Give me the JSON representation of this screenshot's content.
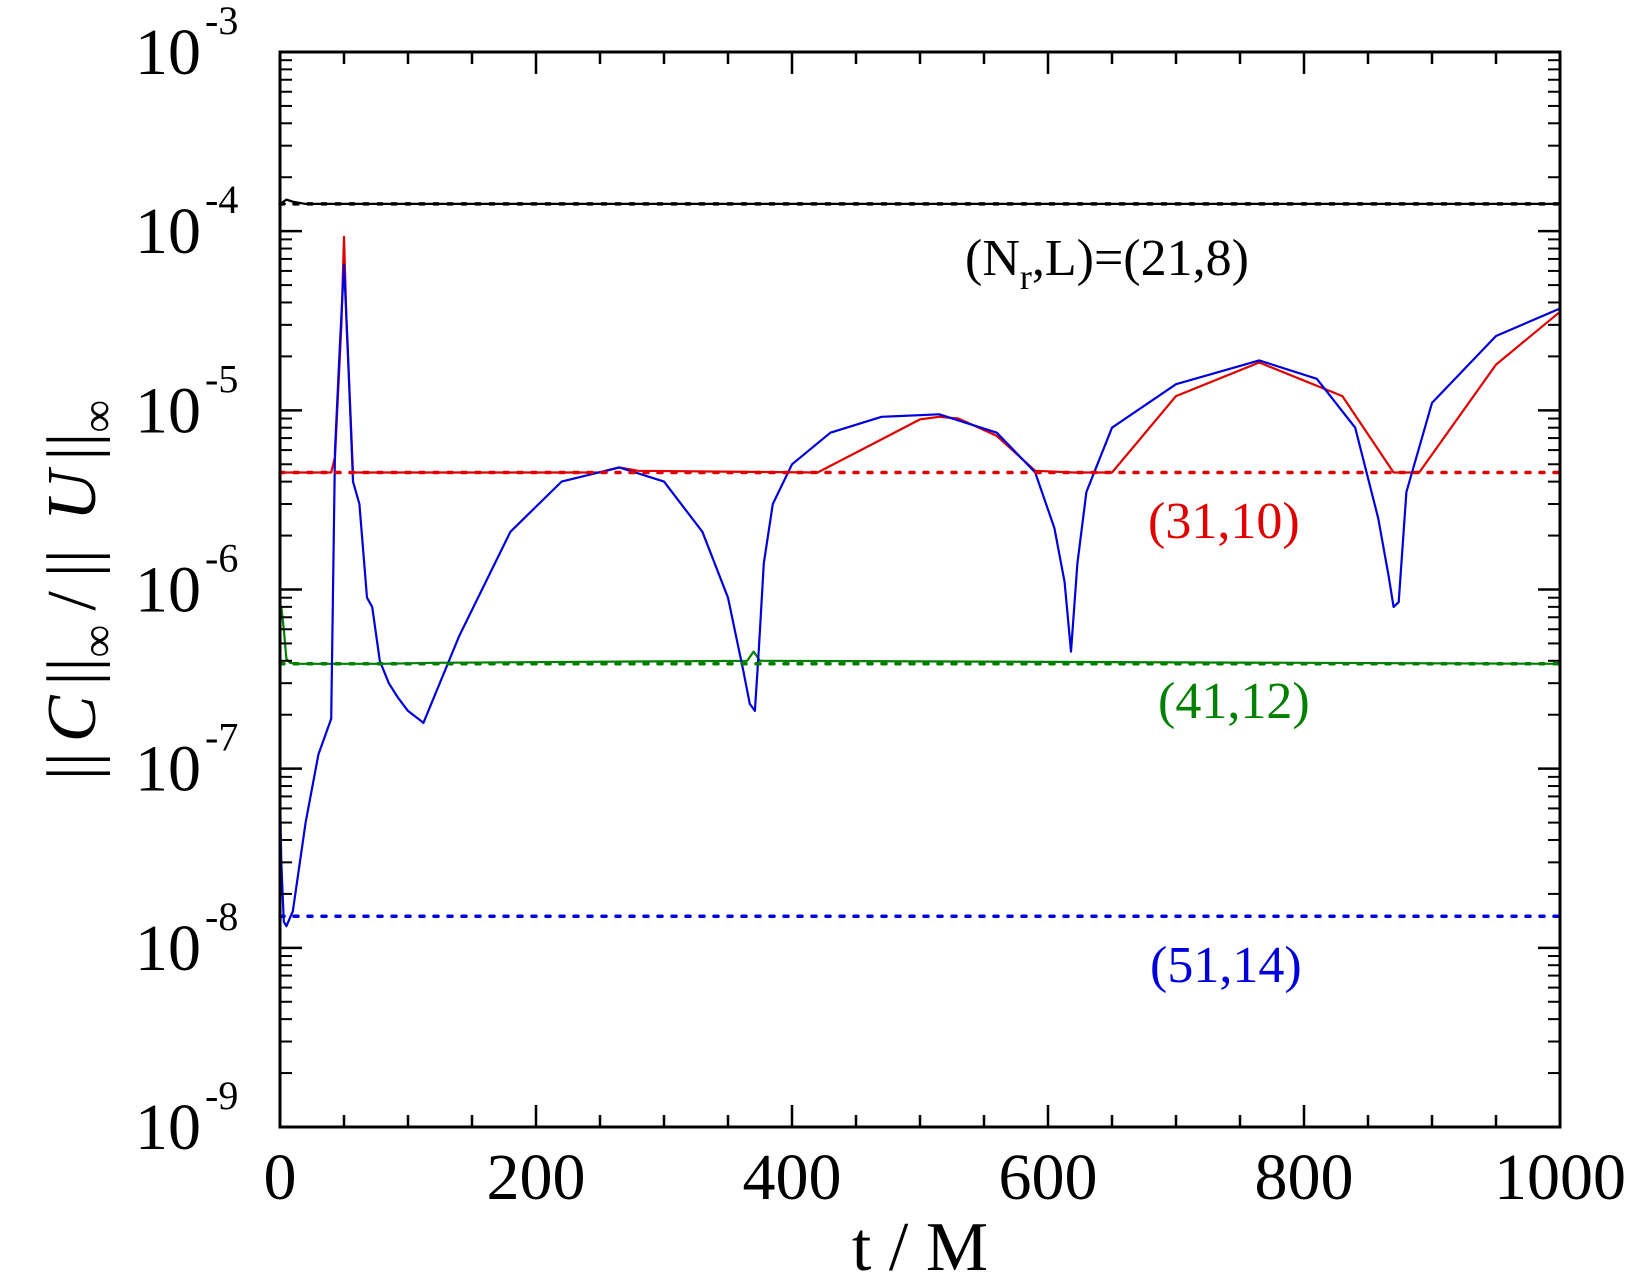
{
  "chart_data": {
    "type": "line",
    "title": "",
    "xlabel": "t / M",
    "ylabel": "|| C ||∞ / || U ||∞",
    "ylabel_parts": {
      "open": "||",
      "c": "C",
      "mid": "||",
      "inf": "∞",
      "slash": "/",
      "open2": "||",
      "u": "U",
      "close": "||"
    },
    "xlim": [
      0,
      1000
    ],
    "ylim_log10": [
      -9,
      -3
    ],
    "yscale": "log",
    "grid": false,
    "x_ticks": [
      0,
      200,
      400,
      600,
      800,
      1000
    ],
    "x_tick_labels": [
      "0",
      "200",
      "400",
      "600",
      "800",
      "1000"
    ],
    "y_ticks_exponent": [
      -9,
      -8,
      -7,
      -6,
      -5,
      -4,
      -3
    ],
    "y_tick_base": "10",
    "y_tick_exponent_labels": [
      "-9",
      "-8",
      "-7",
      "-6",
      "-5",
      "-4",
      "-3"
    ],
    "series": [
      {
        "color": "#000000",
        "style": "solid",
        "x": [
          0,
          2,
          5,
          10,
          20,
          100,
          300,
          500,
          700,
          900,
          1000
        ],
        "y": [
          0.000142,
          0.000145,
          0.00015,
          0.000146,
          0.000142,
          0.000142,
          0.000142,
          0.000142,
          0.000142,
          0.000142,
          0.000142
        ]
      },
      {
        "color": "#e00000",
        "style": "solid",
        "x": [
          0,
          40,
          43,
          48,
          50,
          52,
          57,
          120,
          250,
          265,
          280,
          420,
          500,
          515,
          530,
          560,
          590,
          620,
          640,
          650,
          700,
          765,
          830,
          870,
          890,
          950,
          1000
        ],
        "y": [
          4.5e-06,
          4.5e-06,
          5.5e-06,
          3e-05,
          9.3e-05,
          3e-05,
          4.5e-06,
          4.5e-06,
          4.5e-06,
          4.8e-06,
          4.6e-06,
          4.5e-06,
          8.9e-06,
          9.2e-06,
          9e-06,
          7.2e-06,
          4.6e-06,
          4.5e-06,
          4.5e-06,
          4.5e-06,
          1.2e-05,
          1.85e-05,
          1.2e-05,
          4.5e-06,
          4.5e-06,
          1.8e-05,
          3.55e-05
        ]
      },
      {
        "color": "#008000",
        "style": "solid",
        "x": [
          0,
          1,
          3,
          5,
          8,
          15,
          40,
          80,
          120,
          365,
          370,
          375,
          1000
        ],
        "y": [
          8e-07,
          8e-07,
          6e-07,
          4.1e-07,
          3.9e-07,
          3.85e-07,
          3.85e-07,
          3.85e-07,
          3.9e-07,
          4e-07,
          4.5e-07,
          4e-07,
          3.85e-07
        ]
      },
      {
        "color": "#0000dd",
        "style": "solid",
        "x": [
          0,
          1,
          3,
          5,
          10,
          20,
          30,
          40,
          43,
          47,
          50,
          53,
          57,
          62,
          68,
          72,
          78,
          85,
          92,
          100,
          108,
          112,
          140,
          180,
          220,
          265,
          300,
          330,
          350,
          362,
          367,
          371,
          374,
          378,
          385,
          400,
          430,
          470,
          515,
          560,
          590,
          605,
          613,
          618,
          623,
          630,
          650,
          700,
          765,
          810,
          840,
          858,
          866,
          870,
          874,
          880,
          900,
          950,
          1000
        ],
        "y": [
          7.5e-08,
          3e-08,
          1.4e-08,
          1.32e-08,
          1.6e-08,
          5e-08,
          1.2e-07,
          1.9e-07,
          6e-06,
          2.5e-05,
          6.5e-05,
          2.2e-05,
          4e-06,
          3e-06,
          9e-07,
          8e-07,
          4e-07,
          3e-07,
          2.5e-07,
          2.1e-07,
          1.9e-07,
          1.8e-07,
          5.5e-07,
          2.1e-06,
          4e-06,
          4.8e-06,
          4e-06,
          2.1e-06,
          9e-07,
          3.5e-07,
          2.3e-07,
          2.1e-07,
          4.5e-07,
          1.4e-06,
          3e-06,
          5e-06,
          7.5e-06,
          9.2e-06,
          9.5e-06,
          7.5e-06,
          4.5e-06,
          2.2e-06,
          1.1e-06,
          4.5e-07,
          1.4e-06,
          3.5e-06,
          8e-06,
          1.4e-05,
          1.9e-05,
          1.5e-05,
          8e-06,
          2.5e-06,
          1.2e-06,
          8e-07,
          8.5e-07,
          3.5e-06,
          1.1e-05,
          2.6e-05,
          3.7e-05
        ]
      },
      {
        "color": "#000000",
        "style": "dotted",
        "x": [
          0,
          1000
        ],
        "y": [
          0.000142,
          0.000142
        ]
      },
      {
        "color": "#e00000",
        "style": "dotted",
        "x": [
          0,
          1000
        ],
        "y": [
          4.5e-06,
          4.5e-06
        ]
      },
      {
        "color": "#008000",
        "style": "dotted",
        "x": [
          0,
          1000
        ],
        "y": [
          3.85e-07,
          3.85e-07
        ]
      },
      {
        "color": "#0000dd",
        "style": "dotted",
        "x": [
          0,
          1000
        ],
        "y": [
          1.5e-08,
          1.5e-08
        ]
      }
    ],
    "annotations": [
      {
        "text_parts": [
          "(N",
          "r",
          ",L)=(21,8)"
        ],
        "color": "#000000"
      },
      {
        "text": "(31,10)",
        "color": "#e00000"
      },
      {
        "text": "(41,12)",
        "color": "#008000"
      },
      {
        "text": "(51,14)",
        "color": "#0000dd"
      }
    ]
  }
}
